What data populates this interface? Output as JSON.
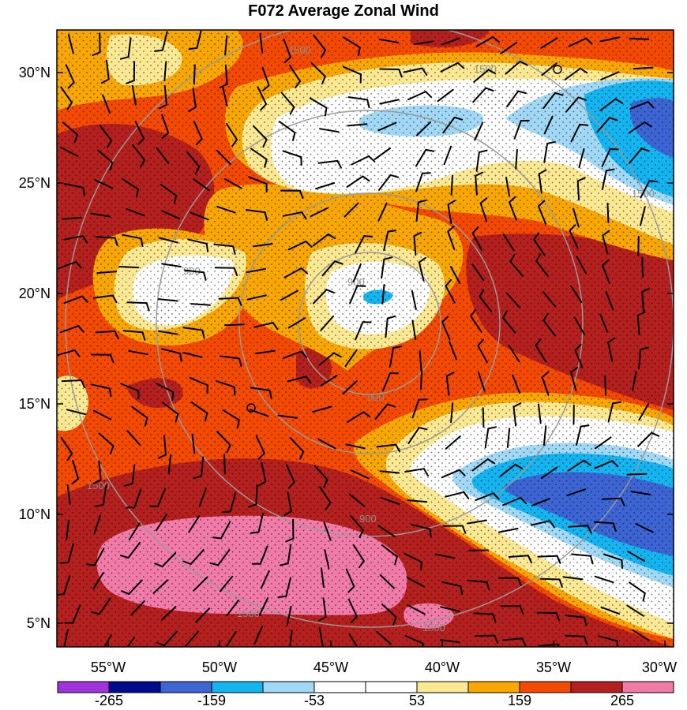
{
  "title": "F072 Average Zonal Wind",
  "colors": {
    "strong_negative": "#a033dc",
    "neg_dark_navy": "#000a8c",
    "neg_blue": "#3c64d2",
    "neg_cyan": "#14b4f0",
    "neg_light_blue": "#a0d8f5",
    "near_zero": "#ffffff",
    "pos_light_yellow": "#fbe892",
    "pos_orange": "#f7a700",
    "pos_orange_red": "#f44a00",
    "pos_dark_red": "#b4201e",
    "strong_positive": "#f07aa8",
    "range_rings": "#9a9a9a",
    "wind_barbs": "#000000"
  },
  "map": {
    "lat_labels": [
      "30°N",
      "25°N",
      "20°N",
      "15°N",
      "10°N",
      "5°N"
    ],
    "lon_labels": [
      "55°W",
      "50°W",
      "45°W",
      "40°W",
      "35°W",
      "30°W"
    ],
    "range_ring_labels": [
      "900",
      "900",
      "900",
      "900",
      "1500",
      "1500",
      "1500",
      "1500",
      "1500",
      "1500"
    ],
    "stippling": true,
    "wind_barbs": true
  },
  "colorbar": {
    "labels": [
      "-265",
      "-159",
      "-53",
      "53",
      "159",
      "265"
    ],
    "bins": [
      "strong_negative",
      "neg_dark_navy",
      "neg_blue",
      "neg_cyan",
      "neg_light_blue",
      "near_zero",
      "near_zero",
      "pos_light_yellow",
      "pos_orange",
      "pos_orange_red",
      "pos_dark_red",
      "strong_positive"
    ]
  }
}
